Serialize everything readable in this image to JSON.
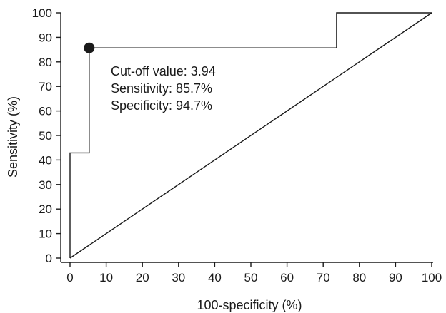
{
  "chart_data": {
    "type": "line",
    "xlabel": "100-specificity (%)",
    "ylabel": "Sensitivity (%)",
    "xlim": [
      0,
      100
    ],
    "ylim": [
      0,
      100
    ],
    "xticks": [
      0,
      10,
      20,
      30,
      40,
      50,
      60,
      70,
      80,
      90,
      100
    ],
    "yticks": [
      0,
      10,
      20,
      30,
      40,
      50,
      60,
      70,
      80,
      90,
      100
    ],
    "grid": false,
    "series": [
      {
        "type": "step",
        "color": "#1a1a1a",
        "x": [
          0,
          0,
          5.3,
          5.3,
          73.7,
          73.7,
          100
        ],
        "y": [
          0,
          42.9,
          42.9,
          85.7,
          85.7,
          100,
          100
        ]
      },
      {
        "type": "diagonal",
        "color": "#1a1a1a",
        "x": [
          0,
          100
        ],
        "y": [
          0,
          100
        ]
      }
    ],
    "marker": {
      "x": 5.3,
      "y": 85.7,
      "color": "#1a1a1a"
    },
    "annotations": [
      "Cut-off value: 3.94",
      "Sensitivity: 85.7%",
      "Specificity: 94.7%"
    ]
  }
}
